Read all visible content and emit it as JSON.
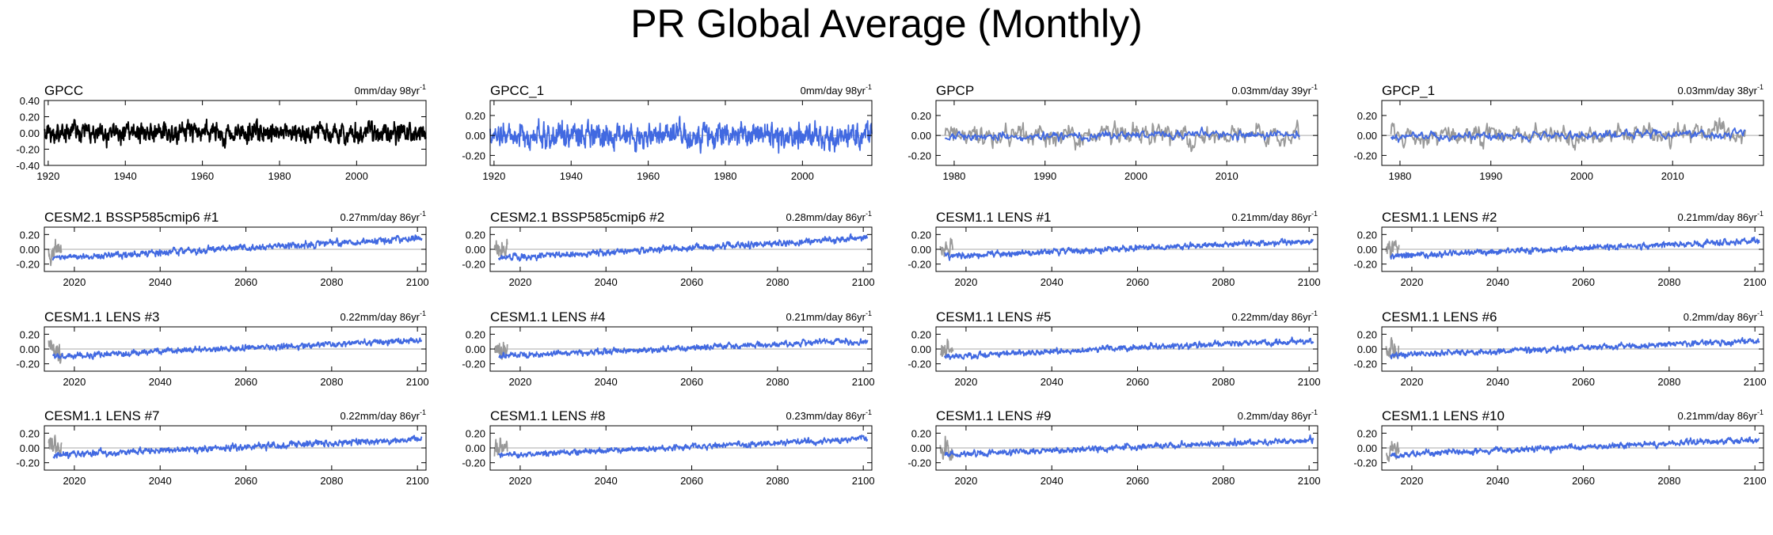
{
  "title": "PR Global Average (Monthly)",
  "colors": {
    "model": "#4169e1",
    "obs_black": "#000000",
    "obs_gray": "#999999",
    "zero_line": "#aaaaaa"
  },
  "chart_data": [
    {
      "type": "line",
      "title": "GPCC",
      "trend": "0mm/day 98yr",
      "xlim": [
        1919,
        2018
      ],
      "ylim": [
        -0.4,
        0.4
      ],
      "xticks": [
        "1920",
        "1940",
        "1960",
        "1980",
        "2000"
      ],
      "yticks": [
        "0.40",
        "0.20",
        "0.00",
        "-0.20",
        "-0.40"
      ],
      "series": [
        {
          "color": "#000000",
          "start": 1919,
          "end": 2018,
          "trend_total": 0.0,
          "amp": 0.11
        }
      ]
    },
    {
      "type": "line",
      "title": "GPCC_1",
      "trend": "0mm/day 98yr",
      "xlim": [
        1919,
        2018
      ],
      "ylim": [
        -0.3,
        0.35
      ],
      "xticks": [
        "1920",
        "1940",
        "1960",
        "1980",
        "2000"
      ],
      "yticks": [
        "0.20",
        "0.00",
        "-0.20"
      ],
      "series": [
        {
          "color": "#4169e1",
          "start": 1919,
          "end": 2018,
          "trend_total": 0.0,
          "amp": 0.11
        }
      ]
    },
    {
      "type": "line",
      "title": "GPCP",
      "trend": "0.03mm/day 39yr",
      "xlim": [
        1978,
        2020
      ],
      "ylim": [
        -0.3,
        0.35
      ],
      "xticks": [
        "1980",
        "1990",
        "2000",
        "2010"
      ],
      "yticks": [
        "0.20",
        "0.00",
        "-0.20"
      ],
      "series": [
        {
          "color": "#999999",
          "start": 1979,
          "end": 2018,
          "trend_total": 0.03,
          "amp": 0.1
        },
        {
          "color": "#4169e1",
          "start": 1979,
          "end": 2018,
          "trend_total": 0.03,
          "amp": 0.04
        }
      ]
    },
    {
      "type": "line",
      "title": "GPCP_1",
      "trend": "0.03mm/day 38yr",
      "xlim": [
        1978,
        2020
      ],
      "ylim": [
        -0.3,
        0.35
      ],
      "xticks": [
        "1980",
        "1990",
        "2000",
        "2010"
      ],
      "yticks": [
        "0.20",
        "0.00",
        "-0.20"
      ],
      "series": [
        {
          "color": "#999999",
          "start": 1979,
          "end": 2018,
          "trend_total": 0.03,
          "amp": 0.1
        },
        {
          "color": "#4169e1",
          "start": 1979,
          "end": 2018,
          "trend_total": 0.03,
          "amp": 0.04
        }
      ]
    },
    {
      "type": "line",
      "title": "CESM2.1 BSSP585cmip6 #1",
      "trend": "0.27mm/day 86yr",
      "xlim": [
        2013,
        2102
      ],
      "ylim": [
        -0.3,
        0.3
      ],
      "xticks": [
        "2020",
        "2040",
        "2060",
        "2080",
        "2100"
      ],
      "yticks": [
        "0.20",
        "0.00",
        "-0.20"
      ],
      "series": [
        {
          "color": "#999999",
          "start": 2014,
          "end": 2017,
          "trend_total": 0.0,
          "amp": 0.13
        },
        {
          "color": "#4169e1",
          "start": 2015,
          "end": 2101,
          "trend_total": 0.27,
          "amp": 0.04
        }
      ]
    },
    {
      "type": "line",
      "title": "CESM2.1 BSSP585cmip6 #2",
      "trend": "0.28mm/day 86yr",
      "xlim": [
        2013,
        2102
      ],
      "ylim": [
        -0.3,
        0.3
      ],
      "xticks": [
        "2020",
        "2040",
        "2060",
        "2080",
        "2100"
      ],
      "yticks": [
        "0.20",
        "0.00",
        "-0.20"
      ],
      "series": [
        {
          "color": "#999999",
          "start": 2014,
          "end": 2017,
          "trend_total": 0.0,
          "amp": 0.13
        },
        {
          "color": "#4169e1",
          "start": 2015,
          "end": 2101,
          "trend_total": 0.28,
          "amp": 0.04
        }
      ]
    },
    {
      "type": "line",
      "title": "CESM1.1 LENS #1",
      "trend": "0.21mm/day 86yr",
      "xlim": [
        2013,
        2102
      ],
      "ylim": [
        -0.3,
        0.3
      ],
      "xticks": [
        "2020",
        "2040",
        "2060",
        "2080",
        "2100"
      ],
      "yticks": [
        "0.20",
        "0.00",
        "-0.20"
      ],
      "series": [
        {
          "color": "#999999",
          "start": 2014,
          "end": 2017,
          "trend_total": 0.0,
          "amp": 0.13
        },
        {
          "color": "#4169e1",
          "start": 2015,
          "end": 2101,
          "trend_total": 0.21,
          "amp": 0.035
        }
      ]
    },
    {
      "type": "line",
      "title": "CESM1.1 LENS #2",
      "trend": "0.21mm/day 86yr",
      "xlim": [
        2013,
        2102
      ],
      "ylim": [
        -0.3,
        0.3
      ],
      "xticks": [
        "2020",
        "2040",
        "2060",
        "2080",
        "2100"
      ],
      "yticks": [
        "0.20",
        "0.00",
        "-0.20"
      ],
      "series": [
        {
          "color": "#999999",
          "start": 2014,
          "end": 2017,
          "trend_total": 0.0,
          "amp": 0.13
        },
        {
          "color": "#4169e1",
          "start": 2015,
          "end": 2101,
          "trend_total": 0.21,
          "amp": 0.035
        }
      ]
    },
    {
      "type": "line",
      "title": "CESM1.1 LENS #3",
      "trend": "0.22mm/day 86yr",
      "xlim": [
        2013,
        2102
      ],
      "ylim": [
        -0.3,
        0.3
      ],
      "xticks": [
        "2020",
        "2040",
        "2060",
        "2080",
        "2100"
      ],
      "yticks": [
        "0.20",
        "0.00",
        "-0.20"
      ],
      "series": [
        {
          "color": "#999999",
          "start": 2014,
          "end": 2017,
          "trend_total": 0.0,
          "amp": 0.13
        },
        {
          "color": "#4169e1",
          "start": 2015,
          "end": 2101,
          "trend_total": 0.22,
          "amp": 0.035
        }
      ]
    },
    {
      "type": "line",
      "title": "CESM1.1 LENS #4",
      "trend": "0.21mm/day 86yr",
      "xlim": [
        2013,
        2102
      ],
      "ylim": [
        -0.3,
        0.3
      ],
      "xticks": [
        "2020",
        "2040",
        "2060",
        "2080",
        "2100"
      ],
      "yticks": [
        "0.20",
        "0.00",
        "-0.20"
      ],
      "series": [
        {
          "color": "#999999",
          "start": 2014,
          "end": 2017,
          "trend_total": 0.0,
          "amp": 0.13
        },
        {
          "color": "#4169e1",
          "start": 2015,
          "end": 2101,
          "trend_total": 0.21,
          "amp": 0.035
        }
      ]
    },
    {
      "type": "line",
      "title": "CESM1.1 LENS #5",
      "trend": "0.22mm/day 86yr",
      "xlim": [
        2013,
        2102
      ],
      "ylim": [
        -0.3,
        0.3
      ],
      "xticks": [
        "2020",
        "2040",
        "2060",
        "2080",
        "2100"
      ],
      "yticks": [
        "0.20",
        "0.00",
        "-0.20"
      ],
      "series": [
        {
          "color": "#999999",
          "start": 2014,
          "end": 2017,
          "trend_total": 0.0,
          "amp": 0.13
        },
        {
          "color": "#4169e1",
          "start": 2015,
          "end": 2101,
          "trend_total": 0.22,
          "amp": 0.035
        }
      ]
    },
    {
      "type": "line",
      "title": "CESM1.1 LENS #6",
      "trend": "0.2mm/day 86yr",
      "xlim": [
        2013,
        2102
      ],
      "ylim": [
        -0.3,
        0.3
      ],
      "xticks": [
        "2020",
        "2040",
        "2060",
        "2080",
        "2100"
      ],
      "yticks": [
        "0.20",
        "0.00",
        "-0.20"
      ],
      "series": [
        {
          "color": "#999999",
          "start": 2014,
          "end": 2017,
          "trend_total": 0.0,
          "amp": 0.13
        },
        {
          "color": "#4169e1",
          "start": 2015,
          "end": 2101,
          "trend_total": 0.2,
          "amp": 0.035
        }
      ]
    },
    {
      "type": "line",
      "title": "CESM1.1 LENS #7",
      "trend": "0.22mm/day 86yr",
      "xlim": [
        2013,
        2102
      ],
      "ylim": [
        -0.3,
        0.3
      ],
      "xticks": [
        "2020",
        "2040",
        "2060",
        "2080",
        "2100"
      ],
      "yticks": [
        "0.20",
        "0.00",
        "-0.20"
      ],
      "series": [
        {
          "color": "#999999",
          "start": 2014,
          "end": 2017,
          "trend_total": 0.0,
          "amp": 0.13
        },
        {
          "color": "#4169e1",
          "start": 2015,
          "end": 2101,
          "trend_total": 0.22,
          "amp": 0.04
        }
      ]
    },
    {
      "type": "line",
      "title": "CESM1.1 LENS #8",
      "trend": "0.23mm/day 86yr",
      "xlim": [
        2013,
        2102
      ],
      "ylim": [
        -0.3,
        0.3
      ],
      "xticks": [
        "2020",
        "2040",
        "2060",
        "2080",
        "2100"
      ],
      "yticks": [
        "0.20",
        "0.00",
        "-0.20"
      ],
      "series": [
        {
          "color": "#999999",
          "start": 2014,
          "end": 2017,
          "trend_total": 0.0,
          "amp": 0.13
        },
        {
          "color": "#4169e1",
          "start": 2015,
          "end": 2101,
          "trend_total": 0.23,
          "amp": 0.035
        }
      ]
    },
    {
      "type": "line",
      "title": "CESM1.1 LENS #9",
      "trend": "0.2mm/day 86yr",
      "xlim": [
        2013,
        2102
      ],
      "ylim": [
        -0.3,
        0.3
      ],
      "xticks": [
        "2020",
        "2040",
        "2060",
        "2080",
        "2100"
      ],
      "yticks": [
        "0.20",
        "0.00",
        "-0.20"
      ],
      "series": [
        {
          "color": "#999999",
          "start": 2014,
          "end": 2017,
          "trend_total": 0.0,
          "amp": 0.13
        },
        {
          "color": "#4169e1",
          "start": 2015,
          "end": 2101,
          "trend_total": 0.2,
          "amp": 0.035
        }
      ]
    },
    {
      "type": "line",
      "title": "CESM1.1 LENS #10",
      "trend": "0.21mm/day 86yr",
      "xlim": [
        2013,
        2102
      ],
      "ylim": [
        -0.3,
        0.3
      ],
      "xticks": [
        "2020",
        "2040",
        "2060",
        "2080",
        "2100"
      ],
      "yticks": [
        "0.20",
        "0.00",
        "-0.20"
      ],
      "series": [
        {
          "color": "#999999",
          "start": 2014,
          "end": 2017,
          "trend_total": 0.0,
          "amp": 0.13
        },
        {
          "color": "#4169e1",
          "start": 2015,
          "end": 2101,
          "trend_total": 0.21,
          "amp": 0.035
        }
      ]
    }
  ]
}
